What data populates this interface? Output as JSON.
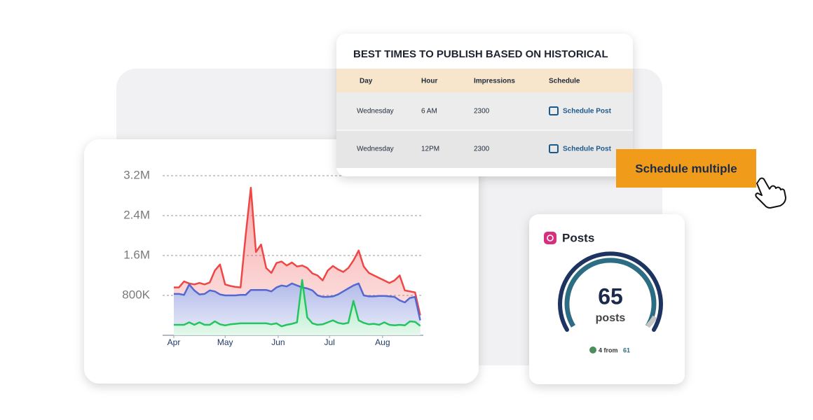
{
  "chart_data": {
    "type": "area",
    "x": [
      0,
      3,
      6,
      9,
      12,
      15,
      18,
      21,
      24,
      27,
      30,
      33,
      36,
      39,
      42,
      45,
      48,
      51,
      54,
      57,
      60,
      63,
      66,
      69,
      72,
      75,
      78,
      81,
      84,
      87,
      90,
      93,
      96,
      99,
      102,
      105,
      108,
      111,
      114,
      117,
      120,
      123,
      126,
      129,
      132,
      135,
      138,
      141,
      144
    ],
    "xlim": [
      0,
      145
    ],
    "xticks": [
      {
        "value": 0,
        "label": "Apr"
      },
      {
        "value": 30,
        "label": "May"
      },
      {
        "value": 61,
        "label": "Jun"
      },
      {
        "value": 91,
        "label": "Jul"
      },
      {
        "value": 122,
        "label": "Aug"
      }
    ],
    "ylim": [
      0,
      3200000
    ],
    "yticks": [
      {
        "value": 800000,
        "label": "800K"
      },
      {
        "value": 1600000,
        "label": "1.6M"
      },
      {
        "value": 2400000,
        "label": "2.4M"
      },
      {
        "value": 3200000,
        "label": "3.2M"
      }
    ],
    "grid": true,
    "series": [
      {
        "color": "#ef4646",
        "values": [
          960000,
          960000,
          1080000,
          1040000,
          1020000,
          1050000,
          1020000,
          1060000,
          1300000,
          1420000,
          1020000,
          990000,
          970000,
          960000,
          2000000,
          2960000,
          1670000,
          1820000,
          1350000,
          1250000,
          1450000,
          1480000,
          1400000,
          1460000,
          1380000,
          1400000,
          1350000,
          1240000,
          1200000,
          1100000,
          1300000,
          1390000,
          1320000,
          1270000,
          1350000,
          1500000,
          1700000,
          1380000,
          1250000,
          1200000,
          1150000,
          1100000,
          1050000,
          1100000,
          1200000,
          900000,
          880000,
          860000,
          400000
        ]
      },
      {
        "color": "#5468cf",
        "values": [
          830000,
          830000,
          810000,
          1020000,
          900000,
          820000,
          830000,
          900000,
          880000,
          820000,
          800000,
          800000,
          800000,
          810000,
          810000,
          910000,
          910000,
          910000,
          910000,
          880000,
          960000,
          1000000,
          980000,
          1040000,
          1000000,
          960000,
          940000,
          900000,
          800000,
          770000,
          770000,
          780000,
          820000,
          880000,
          940000,
          1000000,
          1040000,
          800000,
          780000,
          780000,
          790000,
          790000,
          780000,
          770000,
          700000,
          660000,
          750000,
          770000,
          300000
        ]
      },
      {
        "color": "#22c55e",
        "values": [
          210000,
          210000,
          210000,
          260000,
          210000,
          260000,
          210000,
          210000,
          280000,
          220000,
          200000,
          220000,
          230000,
          240000,
          240000,
          240000,
          240000,
          240000,
          240000,
          220000,
          240000,
          180000,
          210000,
          230000,
          260000,
          1110000,
          360000,
          240000,
          210000,
          220000,
          260000,
          300000,
          250000,
          230000,
          250000,
          690000,
          300000,
          250000,
          220000,
          230000,
          210000,
          260000,
          210000,
          200000,
          210000,
          200000,
          280000,
          270000,
          190000
        ]
      }
    ]
  },
  "table": {
    "title": "BEST TIMES TO PUBLISH BASED ON HISTORICAL",
    "headers": [
      "Day",
      "Hour",
      "Impressions",
      "Schedule"
    ],
    "rows": [
      [
        "Wednesday",
        "6 AM",
        "2300",
        "Schedule Post"
      ],
      [
        "Wednesday",
        "12PM",
        "2300",
        "Schedule Post"
      ]
    ]
  },
  "button": {
    "label": "Schedule multiple"
  },
  "posts": {
    "title": "Posts",
    "count": "65",
    "unit": "posts",
    "change": "4 from",
    "previous": "61"
  }
}
